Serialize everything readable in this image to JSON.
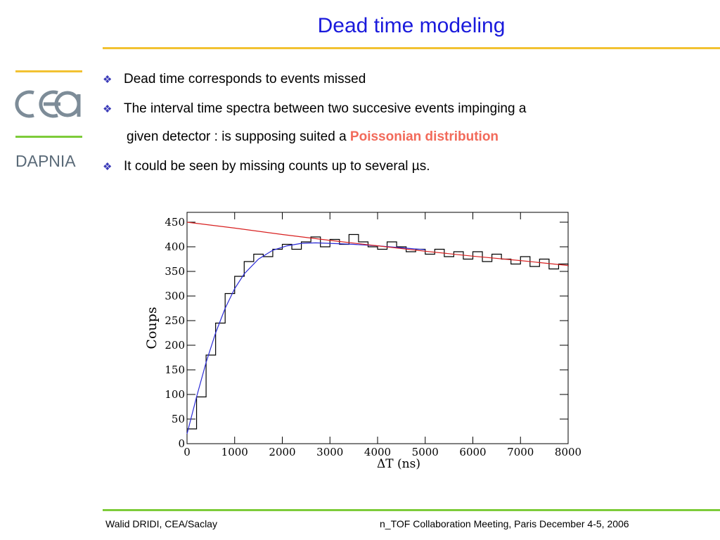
{
  "slide": {
    "title": "Dead time modeling",
    "logo_text": "DAPNIA",
    "logo_mark": "cea",
    "bullets": [
      {
        "text": "Dead time corresponds to events missed"
      },
      {
        "text": "The interval time spectra between two succesive events impinging a"
      },
      {
        "text_before": "given detector : is supposing suited a ",
        "highlight": "Poissonian distribution"
      },
      {
        "text": "It could be seen by missing counts up to several µs."
      }
    ],
    "bullet_icon": "diamond-flower-icon",
    "colors": {
      "title": "#1a1adc",
      "highlight": "#f26a5a",
      "rule_top": "#f2c232",
      "rule_bottom": "#7dcc3a"
    }
  },
  "footer": {
    "left": "Walid DRIDI, CEA/Saclay",
    "right": "n_TOF Collaboration Meeting, Paris December 4-5, 2006"
  },
  "chart_data": {
    "type": "line",
    "xlabel": "ΔT (ns)",
    "ylabel": "Coups",
    "xlim": [
      0,
      8000
    ],
    "ylim": [
      0,
      470
    ],
    "x_ticks": [
      0,
      1000,
      2000,
      3000,
      4000,
      5000,
      6000,
      7000,
      8000
    ],
    "y_ticks": [
      0,
      50,
      100,
      150,
      200,
      250,
      300,
      350,
      400,
      450
    ],
    "series": [
      {
        "style": "histogram",
        "color": "#000000",
        "x": [
          0,
          200,
          400,
          600,
          800,
          1000,
          1200,
          1400,
          1600,
          1800,
          2000,
          2200,
          2400,
          2600,
          2800,
          3000,
          3200,
          3400,
          3600,
          3800,
          4000,
          4200,
          4400,
          4600,
          4800,
          5000,
          5200,
          5400,
          5600,
          5800,
          6000,
          6200,
          6400,
          6600,
          6800,
          7000,
          7200,
          7400,
          7600,
          7800,
          8000
        ],
        "y": [
          30,
          95,
          180,
          245,
          305,
          340,
          370,
          385,
          380,
          395,
          405,
          395,
          410,
          420,
          400,
          415,
          405,
          425,
          410,
          400,
          395,
          410,
          400,
          390,
          395,
          385,
          395,
          380,
          390,
          375,
          390,
          370,
          385,
          375,
          365,
          380,
          360,
          375,
          355,
          365,
          360
        ]
      },
      {
        "style": "fit",
        "color": "#2a2ad6",
        "x": [
          0,
          200,
          400,
          600,
          800,
          1000,
          1200,
          1500,
          1800,
          2100,
          2400,
          2700,
          3000,
          3500,
          4000,
          4500,
          5000
        ],
        "y": [
          20,
          95,
          165,
          225,
          275,
          315,
          345,
          375,
          393,
          402,
          407,
          408,
          407,
          405,
          402,
          398,
          394
        ]
      },
      {
        "style": "fit",
        "color": "#d82020",
        "x": [
          0,
          1000,
          2000,
          3000,
          4000,
          5000,
          6000,
          7000,
          8000
        ],
        "y": [
          450,
          438,
          425,
          413,
          402,
          391,
          381,
          372,
          362
        ]
      }
    ]
  }
}
